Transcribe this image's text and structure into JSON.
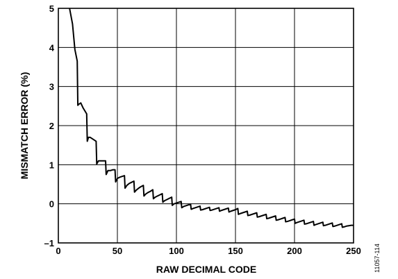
{
  "chart_data": {
    "type": "line",
    "title": "",
    "xlabel": "RAW DECIMAL CODE",
    "ylabel": "MISMATCH ERROR (%)",
    "xlim": [
      0,
      250
    ],
    "ylim": [
      -1,
      5
    ],
    "xticks": [
      0,
      50,
      100,
      150,
      200,
      250
    ],
    "yticks": [
      -1,
      0,
      1,
      2,
      3,
      4,
      5
    ],
    "xtick_labels": [
      "0",
      "50",
      "100",
      "150",
      "200",
      "250"
    ],
    "ytick_labels": [
      "–1",
      "0",
      "1",
      "2",
      "3",
      "4",
      "5"
    ],
    "grid": true,
    "line_color": "#000000",
    "series": [
      {
        "points": [
          [
            9.5,
            5.0
          ],
          [
            12,
            4.6
          ],
          [
            14,
            3.95
          ],
          [
            16,
            3.65
          ],
          [
            16.5,
            2.52
          ],
          [
            17.5,
            2.55
          ],
          [
            19,
            2.58
          ],
          [
            21,
            2.45
          ],
          [
            23,
            2.35
          ],
          [
            24,
            2.3
          ],
          [
            24.5,
            1.6
          ],
          [
            25.5,
            1.7
          ],
          [
            27,
            1.7
          ],
          [
            29,
            1.66
          ],
          [
            31,
            1.62
          ],
          [
            32,
            1.6
          ],
          [
            32.5,
            1.02
          ],
          [
            34,
            1.1
          ],
          [
            36,
            1.1
          ],
          [
            38,
            1.1
          ],
          [
            40,
            1.1
          ],
          [
            40.5,
            0.75
          ],
          [
            42,
            0.85
          ],
          [
            44,
            0.85
          ],
          [
            46,
            0.87
          ],
          [
            48,
            0.87
          ],
          [
            48.5,
            0.56
          ],
          [
            50,
            0.65
          ],
          [
            52,
            0.68
          ],
          [
            54,
            0.7
          ],
          [
            56,
            0.72
          ],
          [
            56.5,
            0.4
          ],
          [
            58,
            0.47
          ],
          [
            60,
            0.52
          ],
          [
            62,
            0.55
          ],
          [
            64,
            0.58
          ],
          [
            64.5,
            0.3
          ],
          [
            66,
            0.35
          ],
          [
            68,
            0.4
          ],
          [
            70,
            0.44
          ],
          [
            72,
            0.47
          ],
          [
            72.5,
            0.2
          ],
          [
            74,
            0.25
          ],
          [
            76,
            0.29
          ],
          [
            78,
            0.32
          ],
          [
            80,
            0.36
          ],
          [
            80.5,
            0.13
          ],
          [
            82,
            0.17
          ],
          [
            84,
            0.2
          ],
          [
            86,
            0.23
          ],
          [
            88,
            0.26
          ],
          [
            88.5,
            0.04
          ],
          [
            90,
            0.08
          ],
          [
            92,
            0.11
          ],
          [
            94,
            0.14
          ],
          [
            96,
            0.17
          ],
          [
            96.5,
            -0.04
          ],
          [
            98,
            0.0
          ],
          [
            100,
            0.02
          ],
          [
            102,
            0.04
          ],
          [
            104,
            0.06
          ],
          [
            104.5,
            -0.1
          ],
          [
            106,
            -0.07
          ],
          [
            108,
            -0.05
          ],
          [
            110,
            -0.03
          ],
          [
            112,
            -0.01
          ],
          [
            112.5,
            -0.14
          ],
          [
            114,
            -0.12
          ],
          [
            116,
            -0.1
          ],
          [
            118,
            -0.08
          ],
          [
            120,
            -0.06
          ],
          [
            120.5,
            -0.16
          ],
          [
            122,
            -0.15
          ],
          [
            124,
            -0.13
          ],
          [
            126,
            -0.11
          ],
          [
            128,
            -0.09
          ],
          [
            128.5,
            -0.17
          ],
          [
            130,
            -0.16
          ],
          [
            132,
            -0.14
          ],
          [
            134,
            -0.12
          ],
          [
            136,
            -0.1
          ],
          [
            136.5,
            -0.19
          ],
          [
            138,
            -0.17
          ],
          [
            140,
            -0.15
          ],
          [
            142,
            -0.13
          ],
          [
            144,
            -0.11
          ],
          [
            144.5,
            -0.21
          ],
          [
            146,
            -0.19
          ],
          [
            148,
            -0.17
          ],
          [
            150,
            -0.15
          ],
          [
            152,
            -0.12
          ],
          [
            152.5,
            -0.27
          ],
          [
            154,
            -0.25
          ],
          [
            156,
            -0.23
          ],
          [
            158,
            -0.21
          ],
          [
            160,
            -0.19
          ],
          [
            160.5,
            -0.3
          ],
          [
            162,
            -0.29
          ],
          [
            164,
            -0.27
          ],
          [
            166,
            -0.25
          ],
          [
            168,
            -0.23
          ],
          [
            168.5,
            -0.34
          ],
          [
            170,
            -0.33
          ],
          [
            172,
            -0.31
          ],
          [
            174,
            -0.29
          ],
          [
            176,
            -0.27
          ],
          [
            176.5,
            -0.38
          ],
          [
            178,
            -0.37
          ],
          [
            180,
            -0.35
          ],
          [
            182,
            -0.33
          ],
          [
            184,
            -0.31
          ],
          [
            184.5,
            -0.42
          ],
          [
            186,
            -0.41
          ],
          [
            188,
            -0.39
          ],
          [
            190,
            -0.37
          ],
          [
            192,
            -0.35
          ],
          [
            192.5,
            -0.46
          ],
          [
            194,
            -0.45
          ],
          [
            196,
            -0.43
          ],
          [
            198,
            -0.41
          ],
          [
            200,
            -0.39
          ],
          [
            200.5,
            -0.5
          ],
          [
            202,
            -0.48
          ],
          [
            204,
            -0.46
          ],
          [
            206,
            -0.44
          ],
          [
            208,
            -0.42
          ],
          [
            208.5,
            -0.52
          ],
          [
            210,
            -0.51
          ],
          [
            212,
            -0.49
          ],
          [
            214,
            -0.47
          ],
          [
            216,
            -0.45
          ],
          [
            216.5,
            -0.55
          ],
          [
            218,
            -0.53
          ],
          [
            220,
            -0.51
          ],
          [
            222,
            -0.49
          ],
          [
            224,
            -0.47
          ],
          [
            224.5,
            -0.56
          ],
          [
            226,
            -0.55
          ],
          [
            228,
            -0.53
          ],
          [
            230,
            -0.51
          ],
          [
            232,
            -0.49
          ],
          [
            232.5,
            -0.58
          ],
          [
            234,
            -0.57
          ],
          [
            236,
            -0.55
          ],
          [
            238,
            -0.53
          ],
          [
            240,
            -0.51
          ],
          [
            240.5,
            -0.6
          ],
          [
            242,
            -0.59
          ],
          [
            244,
            -0.57
          ],
          [
            246,
            -0.56
          ],
          [
            248,
            -0.55
          ],
          [
            250,
            -0.55
          ]
        ]
      }
    ]
  },
  "figure_id": "11057-114"
}
